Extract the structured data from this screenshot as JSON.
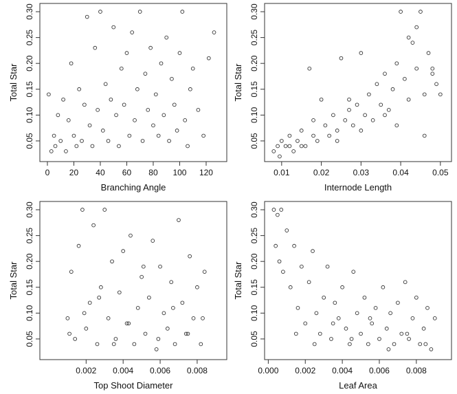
{
  "chart_data": [
    {
      "type": "scatter",
      "x_label": "Branching Angle",
      "y_label": "Total Star",
      "color": "#333333",
      "xlim": [
        -5.7,
        135.6
      ],
      "xticks": [
        0,
        20,
        40,
        60,
        80,
        100,
        120
      ],
      "ylim": [
        0.01,
        0.316
      ],
      "yticks": [
        0.05,
        {
          "value": 0.1,
          "label": "0.10"
        },
        0.15,
        {
          "value": 0.2,
          "label": "0.20"
        },
        0.25,
        {
          "value": 0.3,
          "label": "0.30"
        }
      ],
      "x": [
        1,
        3,
        5,
        6,
        8,
        10,
        12,
        14,
        16,
        18,
        20,
        22,
        24,
        26,
        28,
        30,
        32,
        34,
        36,
        38,
        40,
        42,
        44,
        46,
        48,
        50,
        52,
        54,
        56,
        58,
        60,
        62,
        64,
        66,
        68,
        70,
        72,
        74,
        76,
        78,
        80,
        82,
        84,
        86,
        88,
        90,
        92,
        94,
        96,
        98,
        100,
        102,
        104,
        106,
        108,
        110,
        114,
        118,
        122,
        126
      ],
      "values": [
        0.14,
        0.03,
        0.06,
        0.04,
        0.1,
        0.05,
        0.13,
        0.03,
        0.09,
        0.2,
        0.06,
        0.04,
        0.15,
        0.05,
        0.12,
        0.29,
        0.08,
        0.04,
        0.23,
        0.11,
        0.3,
        0.07,
        0.16,
        0.05,
        0.13,
        0.27,
        0.1,
        0.04,
        0.19,
        0.12,
        0.22,
        0.06,
        0.26,
        0.09,
        0.15,
        0.3,
        0.05,
        0.18,
        0.11,
        0.23,
        0.08,
        0.14,
        0.06,
        0.2,
        0.1,
        0.25,
        0.05,
        0.17,
        0.12,
        0.07,
        0.22,
        0.3,
        0.09,
        0.04,
        0.15,
        0.19,
        0.11,
        0.06,
        0.21,
        0.26
      ]
    },
    {
      "type": "scatter",
      "x_label": "Internode Length",
      "y_label": "Total Star",
      "color": "#333333",
      "xlim": [
        0.0057,
        0.0528
      ],
      "xticks": [
        0.01,
        0.02,
        0.03,
        0.04,
        0.05
      ],
      "ylim": [
        0.01,
        0.316
      ],
      "yticks": [
        0.05,
        {
          "value": 0.1,
          "label": "0.10"
        },
        0.15,
        {
          "value": 0.2,
          "label": "0.20"
        },
        0.25,
        {
          "value": 0.3,
          "label": "0.30"
        }
      ],
      "x": [
        0.008,
        0.009,
        0.0095,
        0.01,
        0.011,
        0.012,
        0.013,
        0.014,
        0.015,
        0.016,
        0.017,
        0.018,
        0.019,
        0.02,
        0.021,
        0.022,
        0.023,
        0.024,
        0.025,
        0.026,
        0.027,
        0.028,
        0.029,
        0.03,
        0.031,
        0.032,
        0.033,
        0.034,
        0.035,
        0.036,
        0.037,
        0.038,
        0.039,
        0.04,
        0.041,
        0.042,
        0.043,
        0.044,
        0.045,
        0.046,
        0.047,
        0.048,
        0.049,
        0.05,
        0.012,
        0.018,
        0.024,
        0.03,
        0.036,
        0.042,
        0.046,
        0.015,
        0.027,
        0.039,
        0.044,
        0.048
      ],
      "values": [
        0.03,
        0.04,
        0.02,
        0.05,
        0.04,
        0.06,
        0.03,
        0.05,
        0.07,
        0.04,
        0.19,
        0.06,
        0.05,
        0.13,
        0.08,
        0.06,
        0.1,
        0.07,
        0.21,
        0.09,
        0.11,
        0.08,
        0.12,
        0.22,
        0.1,
        0.14,
        0.09,
        0.16,
        0.12,
        0.18,
        0.11,
        0.15,
        0.2,
        0.3,
        0.17,
        0.13,
        0.24,
        0.19,
        0.3,
        0.14,
        0.22,
        0.18,
        0.16,
        0.14,
        0.04,
        0.09,
        0.05,
        0.07,
        0.1,
        0.25,
        0.06,
        0.04,
        0.13,
        0.08,
        0.27,
        0.19
      ]
    },
    {
      "type": "scatter",
      "x_label": "Top Shoot Diameter",
      "y_label": "Total Star",
      "color": "#333333",
      "xlim": [
        -0.0005,
        0.0096
      ],
      "xticks": [
        0.002,
        0.004,
        0.006,
        0.008
      ],
      "ylim": [
        0.01,
        0.316
      ],
      "yticks": [
        0.05,
        {
          "value": 0.1,
          "label": "0.10"
        },
        0.15,
        {
          "value": 0.2,
          "label": "0.20"
        },
        0.25,
        {
          "value": 0.3,
          "label": "0.30"
        }
      ],
      "x": [
        0.001,
        0.0012,
        0.0014,
        0.0016,
        0.0018,
        0.002,
        0.0022,
        0.0024,
        0.0026,
        0.0028,
        0.003,
        0.0032,
        0.0034,
        0.0036,
        0.0038,
        0.004,
        0.0042,
        0.0044,
        0.0046,
        0.0048,
        0.005,
        0.0052,
        0.0054,
        0.0056,
        0.0058,
        0.006,
        0.0062,
        0.0064,
        0.0066,
        0.0068,
        0.007,
        0.0072,
        0.0074,
        0.0076,
        0.0078,
        0.008,
        0.0082,
        0.0084,
        0.0011,
        0.0019,
        0.0027,
        0.0035,
        0.0043,
        0.0051,
        0.0059,
        0.0067,
        0.0075,
        0.0083
      ],
      "values": [
        0.09,
        0.18,
        0.05,
        0.23,
        0.3,
        0.07,
        0.12,
        0.27,
        0.04,
        0.15,
        0.3,
        0.09,
        0.2,
        0.05,
        0.14,
        0.22,
        0.08,
        0.25,
        0.04,
        0.11,
        0.17,
        0.06,
        0.13,
        0.24,
        0.03,
        0.19,
        0.1,
        0.07,
        0.16,
        0.04,
        0.28,
        0.12,
        0.06,
        0.21,
        0.09,
        0.15,
        0.04,
        0.18,
        0.06,
        0.1,
        0.13,
        0.04,
        0.08,
        0.19,
        0.05,
        0.11,
        0.06,
        0.09
      ]
    },
    {
      "type": "scatter",
      "x_label": "Leaf Area",
      "y_label": "Total Star",
      "color": "#333333",
      "xlim": [
        -0.0002,
        0.0099
      ],
      "xticks": [
        {
          "value": 0,
          "label": "0.000"
        },
        0.002,
        0.004,
        0.006,
        0.008
      ],
      "ylim": [
        0.01,
        0.316
      ],
      "yticks": [
        0.05,
        {
          "value": 0.1,
          "label": "0.10"
        },
        0.15,
        {
          "value": 0.2,
          "label": "0.20"
        },
        0.25,
        {
          "value": 0.3,
          "label": "0.30"
        }
      ],
      "x": [
        0.0003,
        0.0004,
        0.0005,
        0.0006,
        0.0007,
        0.0008,
        0.001,
        0.0012,
        0.0014,
        0.0016,
        0.0018,
        0.002,
        0.0022,
        0.0024,
        0.0026,
        0.0028,
        0.003,
        0.0032,
        0.0034,
        0.0036,
        0.0038,
        0.004,
        0.0042,
        0.0044,
        0.0046,
        0.0048,
        0.005,
        0.0052,
        0.0054,
        0.0056,
        0.0058,
        0.006,
        0.0062,
        0.0064,
        0.0066,
        0.0068,
        0.007,
        0.0072,
        0.0074,
        0.0076,
        0.0078,
        0.008,
        0.0082,
        0.0084,
        0.0086,
        0.0088,
        0.009,
        0.0015,
        0.0025,
        0.0035,
        0.0045,
        0.0055,
        0.0065,
        0.0075,
        0.0085
      ],
      "values": [
        0.3,
        0.23,
        0.29,
        0.2,
        0.3,
        0.18,
        0.26,
        0.15,
        0.23,
        0.11,
        0.19,
        0.08,
        0.16,
        0.22,
        0.1,
        0.06,
        0.13,
        0.19,
        0.05,
        0.12,
        0.09,
        0.15,
        0.07,
        0.04,
        0.18,
        0.1,
        0.06,
        0.13,
        0.04,
        0.08,
        0.11,
        0.05,
        0.15,
        0.07,
        0.1,
        0.04,
        0.12,
        0.06,
        0.16,
        0.05,
        0.09,
        0.13,
        0.04,
        0.07,
        0.11,
        0.03,
        0.09,
        0.06,
        0.04,
        0.08,
        0.05,
        0.09,
        0.03,
        0.06,
        0.04
      ]
    }
  ]
}
